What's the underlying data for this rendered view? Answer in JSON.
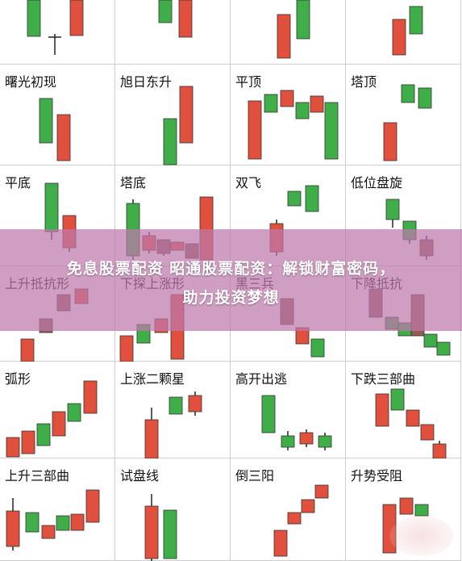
{
  "colors": {
    "up": "#e0503c",
    "down": "#3fae49",
    "neutral": "#8f5b55",
    "wick": "#222222"
  },
  "cells": [
    {
      "label": ""
    },
    {
      "label": ""
    },
    {
      "label": ""
    },
    {
      "label": ""
    },
    {
      "label": "曙光初现"
    },
    {
      "label": "旭日东升"
    },
    {
      "label": "平顶"
    },
    {
      "label": "塔顶"
    },
    {
      "label": "平底"
    },
    {
      "label": "塔底"
    },
    {
      "label": "双飞"
    },
    {
      "label": "低位盘旋"
    },
    {
      "label": "上升抵抗形"
    },
    {
      "label": "下探上涨形"
    },
    {
      "label": "黑三兵"
    },
    {
      "label": "下降抵抗"
    },
    {
      "label": "弧形"
    },
    {
      "label": "上涨二颗星"
    },
    {
      "label": "高开出逃"
    },
    {
      "label": "下跌三部曲"
    },
    {
      "label": "上升三部曲"
    },
    {
      "label": "试盘线"
    },
    {
      "label": "倒三阳"
    },
    {
      "label": "升势受阻"
    }
  ],
  "banner": {
    "line1": "免息股票配资 昭通股票配资：解锁财富密码，",
    "line2": "助力投资梦想"
  }
}
